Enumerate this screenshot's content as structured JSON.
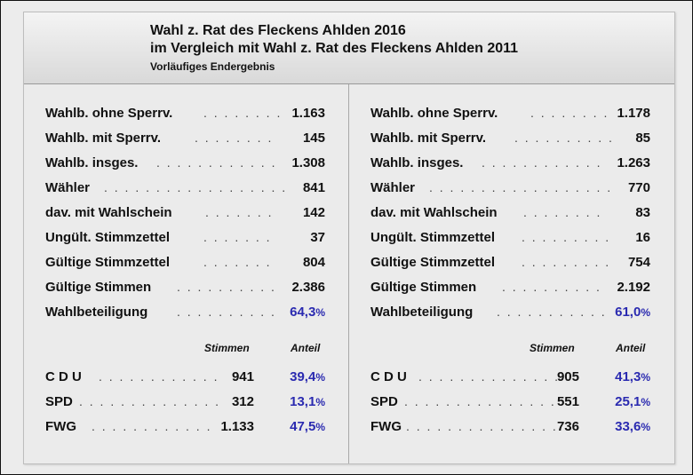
{
  "header": {
    "title1": "Wahl z. Rat des Fleckens Ahlden 2016",
    "title2": "im Vergleich mit Wahl z. Rat des Fleckens Ahlden 2011",
    "subtitle": "Vorläufiges Endergebnis"
  },
  "colheads": {
    "votes": "Stimmen",
    "share": "Anteil"
  },
  "left": {
    "stats": [
      {
        "label": "Wahlb. ohne Sperrv.",
        "dots": ". . . . . . . .",
        "value": "1.163"
      },
      {
        "label": "Wahlb. mit Sperrv.",
        "dots": ". . . . . . . .",
        "value": "145"
      },
      {
        "label": "Wahlb. insges.",
        "dots": ". . . . . . . . . . . .",
        "value": "1.308"
      },
      {
        "label": "Wähler",
        "dots": ". . . . . . . . . . . . . . . . . .",
        "value": "841"
      },
      {
        "label": "dav. mit Wahlschein",
        "dots": ". . . . . . .",
        "value": "142"
      },
      {
        "label": "Ungült. Stimmzettel",
        "dots": ". . . . . . .",
        "value": "37"
      },
      {
        "label": "Gültige Stimmzettel",
        "dots": ". . . . . . .",
        "value": "804"
      },
      {
        "label": "Gültige Stimmen",
        "dots": ". . . . . . . . . .",
        "value": "2.386"
      },
      {
        "label": "Wahlbeteiligung",
        "dots": ". . . . . . . . . .",
        "value": "64,3",
        "unit": "%"
      }
    ],
    "parties": [
      {
        "label": "C D U",
        "dots": ". . . . . . . . . . . .",
        "votes": "941",
        "share": "39,4",
        "unit": "%"
      },
      {
        "label": "SPD",
        "dots": ". . . . . . . . . . . . . .",
        "votes": "312",
        "share": "13,1",
        "unit": "%"
      },
      {
        "label": "FWG",
        "dots": ". . . . . . . . . . . .",
        "votes": "1.133",
        "share": "47,5",
        "unit": "%"
      }
    ]
  },
  "right": {
    "stats": [
      {
        "label": "Wahlb. ohne Sperrv.",
        "dots": ". . . . . . . .",
        "value": "1.178"
      },
      {
        "label": "Wahlb. mit Sperrv.",
        "dots": ". . . . . . . . . .",
        "value": "85"
      },
      {
        "label": "Wahlb. insges.",
        "dots": ". . . . . . . . . . . .",
        "value": "1.263"
      },
      {
        "label": "Wähler",
        "dots": ". . . . . . . . . . . . . . . . . .",
        "value": "770"
      },
      {
        "label": "dav. mit Wahlschein",
        "dots": ". . . . . . . .",
        "value": "83"
      },
      {
        "label": "Ungült. Stimmzettel",
        "dots": ". . . . . . . . .",
        "value": "16"
      },
      {
        "label": "Gültige Stimmzettel",
        "dots": ". . . . . . . . .",
        "value": "754"
      },
      {
        "label": "Gültige Stimmen",
        "dots": ". . . . . . . . . .",
        "value": "2.192"
      },
      {
        "label": "Wahlbeteiligung",
        "dots": ". . . . . . . . . . .",
        "value": "61,0",
        "unit": "%"
      }
    ],
    "parties": [
      {
        "label": "C D U",
        "dots": ". . . . . . . . . . . . . .",
        "votes": "905",
        "share": "41,3",
        "unit": "%"
      },
      {
        "label": "SPD",
        "dots": ". . . . . . . . . . . . . . .",
        "votes": "551",
        "share": "25,1",
        "unit": "%"
      },
      {
        "label": "FWG",
        "dots": ". . . . . . . . . . . . . . .",
        "votes": "736",
        "share": "33,6",
        "unit": "%"
      }
    ]
  }
}
